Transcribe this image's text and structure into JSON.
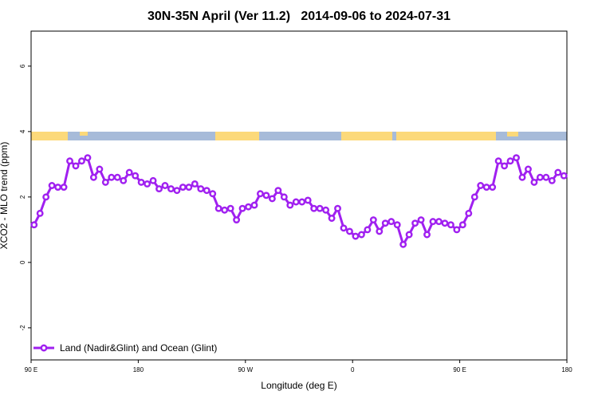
{
  "chart_data": {
    "type": "line",
    "title": "30N-35N April (Ver 11.2)   2014-09-06 to 2024-07-31",
    "x_label": "Longitude (deg E)",
    "y_label": "XCO2 - MLO trend (ppm)",
    "x": [
      92.5,
      97.5,
      102.5,
      107.5,
      112.5,
      117.5,
      122.5,
      127.5,
      132.5,
      137.5,
      142.5,
      147.5,
      152.5,
      157.5,
      162.5,
      167.5,
      172.5,
      177.5,
      182.5,
      187.5,
      192.5,
      197.5,
      202.5,
      207.5,
      212.5,
      217.5,
      222.5,
      227.5,
      232.5,
      237.5,
      242.5,
      247.5,
      252.5,
      257.5,
      262.5,
      267.5,
      272.5,
      277.5,
      282.5,
      287.5,
      292.5,
      297.5,
      302.5,
      307.5,
      312.5,
      317.5,
      322.5,
      327.5,
      332.5,
      337.5,
      342.5,
      347.5,
      352.5,
      357.5,
      362.5,
      367.5,
      372.5,
      377.5,
      382.5,
      387.5,
      392.5,
      397.5,
      402.5,
      407.5,
      412.5,
      417.5,
      422.5,
      427.5,
      432.5,
      437.5,
      442.5,
      447.5,
      452.5,
      457.5,
      462.5,
      467.5,
      472.5,
      477.5,
      482.5,
      487.5,
      492.5,
      497.5,
      502.5,
      507.5,
      512.5,
      517.5,
      522.5,
      527.5,
      532.5,
      537.5
    ],
    "series": [
      {
        "name": "Land (Nadir&Glint) and Ocean (Glint)",
        "color": "#a020f0",
        "values": [
          1.15,
          1.5,
          2.0,
          2.35,
          2.3,
          2.3,
          3.1,
          2.95,
          3.1,
          3.2,
          2.6,
          2.85,
          2.45,
          2.6,
          2.6,
          2.5,
          2.75,
          2.65,
          2.45,
          2.4,
          2.5,
          2.25,
          2.35,
          2.25,
          2.2,
          2.3,
          2.3,
          2.4,
          2.25,
          2.2,
          2.1,
          1.65,
          1.6,
          1.65,
          1.3,
          1.65,
          1.7,
          1.75,
          2.1,
          2.05,
          1.95,
          2.2,
          2.0,
          1.75,
          1.85,
          1.85,
          1.9,
          1.65,
          1.65,
          1.6,
          1.35,
          1.65,
          1.05,
          0.95,
          0.8,
          0.85,
          1.0,
          1.3,
          0.95,
          1.2,
          1.25,
          1.15,
          0.55,
          0.85,
          1.2,
          1.3,
          0.85,
          1.25,
          1.25,
          1.2,
          1.15,
          1.0,
          1.15,
          1.5,
          2.0,
          2.35,
          2.3,
          2.3,
          3.1,
          2.95,
          3.1,
          3.2,
          2.6,
          2.85,
          2.45,
          2.6,
          2.6,
          2.5,
          2.75,
          2.65
        ]
      }
    ],
    "xlim": [
      90,
      540
    ],
    "xticks": [
      {
        "value": 90,
        "label": "90 E"
      },
      180,
      {
        "value": 270,
        "label": "90 W"
      },
      {
        "value": 360,
        "label": "0"
      },
      {
        "value": 450,
        "label": "90 E"
      },
      {
        "value": 540,
        "label": "180"
      }
    ],
    "ylim": [
      -2.98,
      7.07
    ],
    "yticks": [
      -2,
      0,
      2,
      4,
      6
    ],
    "legend": "bottom-left"
  }
}
